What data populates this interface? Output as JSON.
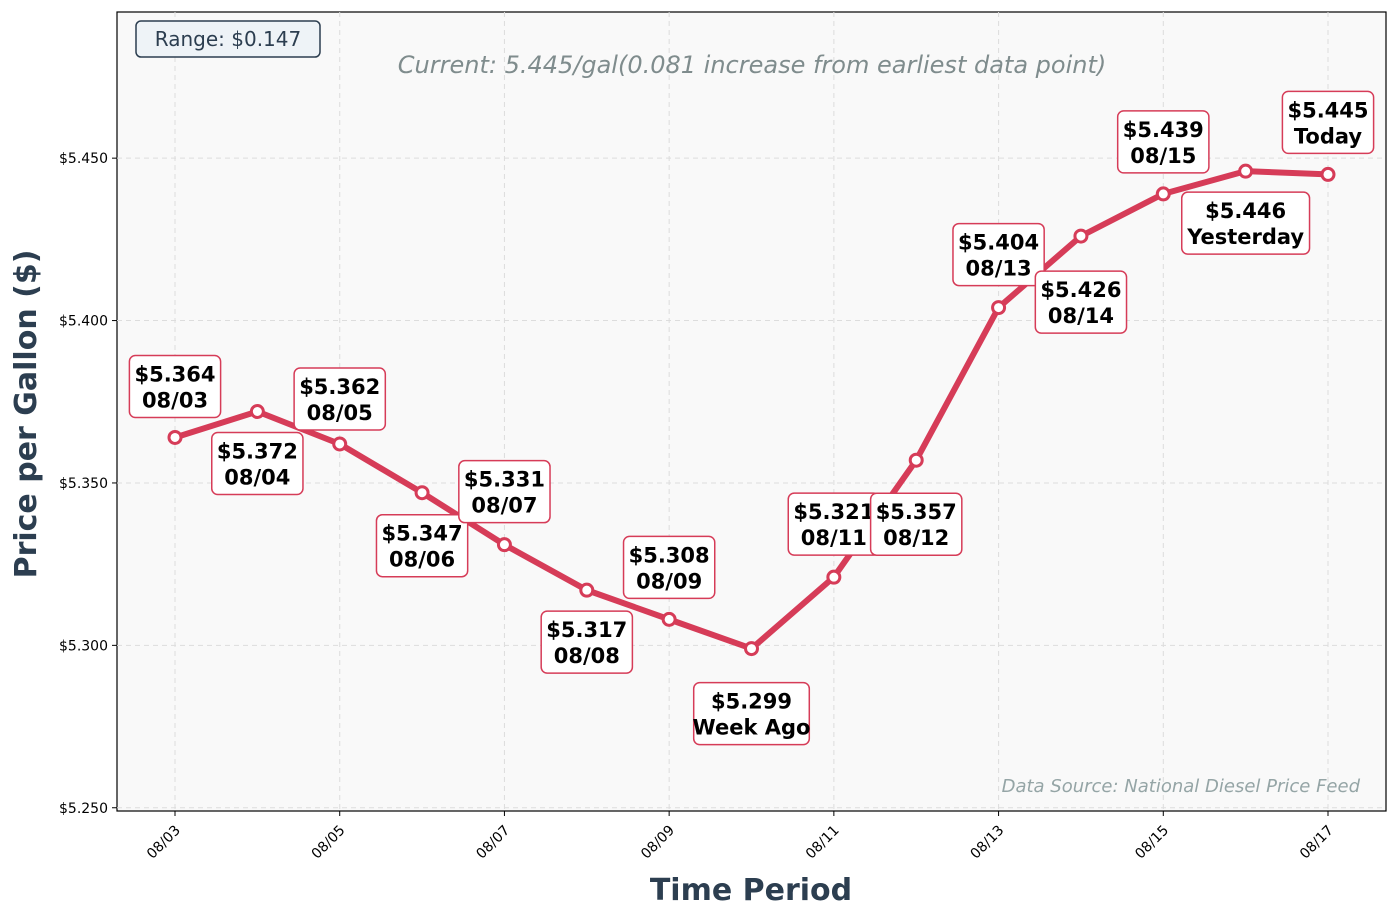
{
  "chart_data": {
    "type": "line",
    "subtitle": "Current: 5.445/gal(0.081 increase from earliest data point)",
    "xlabel": "Time Period",
    "ylabel": "Price per Gallon ($)",
    "range_box": "Range: $0.147",
    "source": "Data Source: National Diesel Price Feed",
    "x": [
      "08/03",
      "08/04",
      "08/05",
      "08/06",
      "08/07",
      "08/08",
      "08/09",
      "08/10",
      "08/11",
      "08/12",
      "08/13",
      "08/14",
      "08/15",
      "08/16",
      "08/17"
    ],
    "values": [
      5.364,
      5.372,
      5.362,
      5.347,
      5.331,
      5.317,
      5.308,
      5.299,
      5.321,
      5.357,
      5.404,
      5.426,
      5.439,
      5.446,
      5.445
    ],
    "point_labels": [
      {
        "price": "$5.364",
        "tag": "08/03"
      },
      {
        "price": "$5.372",
        "tag": "08/04"
      },
      {
        "price": "$5.362",
        "tag": "08/05"
      },
      {
        "price": "$5.347",
        "tag": "08/06"
      },
      {
        "price": "$5.331",
        "tag": "08/07"
      },
      {
        "price": "$5.317",
        "tag": "08/08"
      },
      {
        "price": "$5.308",
        "tag": "08/09"
      },
      {
        "price": "$5.299",
        "tag": "Week Ago"
      },
      {
        "price": "$5.321",
        "tag": "08/11"
      },
      {
        "price": "$5.357",
        "tag": "08/12"
      },
      {
        "price": "$5.404",
        "tag": "08/13"
      },
      {
        "price": "$5.426",
        "tag": "08/14"
      },
      {
        "price": "$5.439",
        "tag": "08/15"
      },
      {
        "price": "$5.446",
        "tag": "Yesterday"
      },
      {
        "price": "$5.445",
        "tag": "Today"
      }
    ],
    "x_ticks": [
      "08/03",
      "08/05",
      "08/07",
      "08/09",
      "08/11",
      "08/13",
      "08/15",
      "08/17"
    ],
    "y_ticks": [
      "$5.250",
      "$5.300",
      "$5.350",
      "$5.400",
      "$5.450"
    ],
    "ylim": [
      5.249,
      5.495
    ],
    "grid": true,
    "colors": {
      "line": "#d63c58",
      "background": "#f9f9f9",
      "label_text": "#2c3e50"
    }
  }
}
